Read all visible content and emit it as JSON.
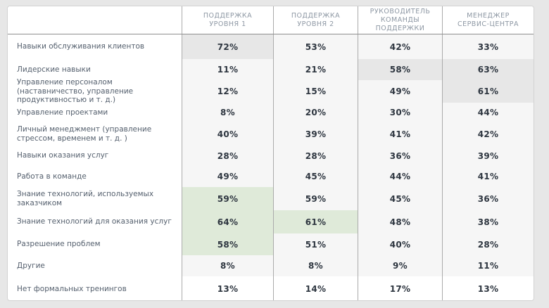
{
  "chart_data": {
    "type": "table",
    "title": "",
    "unit": "%",
    "columns": [
      "ПОДДЕРЖКА\nУРОВНЯ 1",
      "ПОДДЕРЖКА\nУРОВНЯ 2",
      "РУКОВОДИТЕЛЬ\nКОМАНДЫ ПОДДЕРЖКИ",
      "МЕНЕДЖЕР\nСЕРВИС-ЦЕНТРА"
    ],
    "categories": [
      "Навыки обслуживания клиентов",
      "Лидерские навыки",
      "Управление персоналом (наставничество, управление продуктивностью и т. д.)",
      "Управление проектами",
      "Личный менеджмент (управление стрессом, временем и т. д. )",
      "Навыки оказания услуг",
      "Работа в команде",
      "Знание технологий, используемых заказчиком",
      "Знание технологий для оказания услуг",
      "Разрешение проблем",
      "Другие",
      "Нет формальных тренингов"
    ],
    "series": [
      {
        "name": "ПОДДЕРЖКА УРОВНЯ 1",
        "values": [
          72,
          11,
          12,
          8,
          40,
          28,
          49,
          59,
          64,
          58,
          8,
          13
        ]
      },
      {
        "name": "ПОДДЕРЖКА УРОВНЯ 2",
        "values": [
          53,
          21,
          15,
          20,
          39,
          28,
          45,
          59,
          61,
          51,
          8,
          14
        ]
      },
      {
        "name": "РУКОВОДИТЕЛЬ КОМАНДЫ ПОДДЕРЖКИ",
        "values": [
          42,
          58,
          49,
          30,
          41,
          36,
          44,
          45,
          48,
          40,
          9,
          17
        ]
      },
      {
        "name": "МЕНЕДЖЕР СЕРВИС-ЦЕНТРА",
        "values": [
          33,
          63,
          61,
          44,
          42,
          39,
          41,
          36,
          38,
          28,
          11,
          13
        ]
      }
    ],
    "highlighted_cells": [
      {
        "row": 0,
        "col": 0,
        "color": "gray"
      },
      {
        "row": 1,
        "col": 2,
        "color": "gray"
      },
      {
        "row": 1,
        "col": 3,
        "color": "gray"
      },
      {
        "row": 2,
        "col": 3,
        "color": "gray"
      },
      {
        "row": 7,
        "col": 0,
        "color": "green"
      },
      {
        "row": 8,
        "col": 0,
        "color": "green"
      },
      {
        "row": 8,
        "col": 1,
        "color": "green"
      },
      {
        "row": 9,
        "col": 0,
        "color": "green"
      }
    ],
    "last_row_plain": true,
    "legend_position": "none",
    "grid": "vertical-lines-only"
  },
  "colors": {
    "cell_bg": "#f6f6f6",
    "plain_row_bg": "#ffffff",
    "highlight_gray": "#e7e7e7",
    "highlight_green": "#dfead9",
    "header_text": "#8e98a4",
    "label_text": "#55606e",
    "value_text": "#2e3640",
    "gridline": "#ababab",
    "page_bg": "#e7e7e7"
  }
}
